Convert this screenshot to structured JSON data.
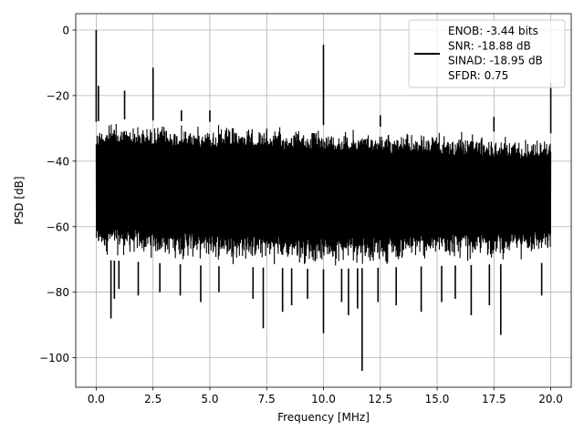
{
  "chart_data": {
    "type": "line",
    "xlabel": "Frequency [MHz]",
    "ylabel": "PSD [dB]",
    "xlim": [
      -0.9,
      20.9
    ],
    "ylim": [
      -109,
      5
    ],
    "x_ticks": [
      0.0,
      2.5,
      5.0,
      7.5,
      10.0,
      12.5,
      15.0,
      17.5,
      20.0
    ],
    "x_tick_labels": [
      "0.0",
      "2.5",
      "5.0",
      "7.5",
      "10.0",
      "12.5",
      "15.0",
      "17.5",
      "20.0"
    ],
    "y_ticks": [
      0,
      -20,
      -40,
      -60,
      -80,
      -100
    ],
    "y_tick_labels": [
      "0",
      "−20",
      "−40",
      "−60",
      "−80",
      "−100"
    ],
    "grid": true,
    "legend_position": "top-right",
    "legend": {
      "lines": [
        "ENOB: -3.44 bits",
        "SNR: -18.88 dB",
        "SINAD: -18.95 dB",
        "SFDR: 0.75"
      ]
    },
    "series": [
      {
        "color": "#000000",
        "x_range": [
          0.0,
          20.0
        ],
        "upper_envelope": [
          [
            0.0,
            -28
          ],
          [
            0.5,
            -27
          ],
          [
            2.0,
            -27.5
          ],
          [
            5.0,
            -28
          ],
          [
            7.5,
            -28.5
          ],
          [
            10.0,
            -29
          ],
          [
            12.5,
            -29.5
          ],
          [
            15.0,
            -30.5
          ],
          [
            17.5,
            -31
          ],
          [
            20.0,
            -31.5
          ]
        ],
        "lower_envelope": [
          [
            0.0,
            -70
          ],
          [
            5.0,
            -72
          ],
          [
            10.0,
            -73
          ],
          [
            15.0,
            -72
          ],
          [
            20.0,
            -71
          ]
        ],
        "spikes": [
          {
            "x": 0.0,
            "y": 0.0
          },
          {
            "x": 0.1,
            "y": -17
          },
          {
            "x": 1.25,
            "y": -18.5
          },
          {
            "x": 2.5,
            "y": -11.5
          },
          {
            "x": 3.75,
            "y": -24.5
          },
          {
            "x": 5.0,
            "y": -24.5
          },
          {
            "x": 10.0,
            "y": -4.5
          },
          {
            "x": 12.5,
            "y": -26
          },
          {
            "x": 17.5,
            "y": -26.5
          },
          {
            "x": 20.0,
            "y": -16
          }
        ],
        "dips": [
          {
            "x": 0.65,
            "y": -88
          },
          {
            "x": 0.8,
            "y": -82
          },
          {
            "x": 1.0,
            "y": -79
          },
          {
            "x": 1.85,
            "y": -81
          },
          {
            "x": 2.8,
            "y": -80
          },
          {
            "x": 3.7,
            "y": -81
          },
          {
            "x": 4.6,
            "y": -83
          },
          {
            "x": 5.4,
            "y": -80
          },
          {
            "x": 6.9,
            "y": -82
          },
          {
            "x": 7.35,
            "y": -91
          },
          {
            "x": 8.2,
            "y": -86
          },
          {
            "x": 8.6,
            "y": -84
          },
          {
            "x": 9.3,
            "y": -82
          },
          {
            "x": 10.0,
            "y": -92.5
          },
          {
            "x": 10.8,
            "y": -83
          },
          {
            "x": 11.1,
            "y": -87
          },
          {
            "x": 11.5,
            "y": -85
          },
          {
            "x": 11.7,
            "y": -104
          },
          {
            "x": 12.4,
            "y": -83
          },
          {
            "x": 13.2,
            "y": -84
          },
          {
            "x": 14.3,
            "y": -86
          },
          {
            "x": 15.2,
            "y": -83
          },
          {
            "x": 15.8,
            "y": -82
          },
          {
            "x": 16.5,
            "y": -87
          },
          {
            "x": 17.3,
            "y": -84
          },
          {
            "x": 17.8,
            "y": -93
          },
          {
            "x": 19.6,
            "y": -81
          }
        ]
      }
    ]
  }
}
